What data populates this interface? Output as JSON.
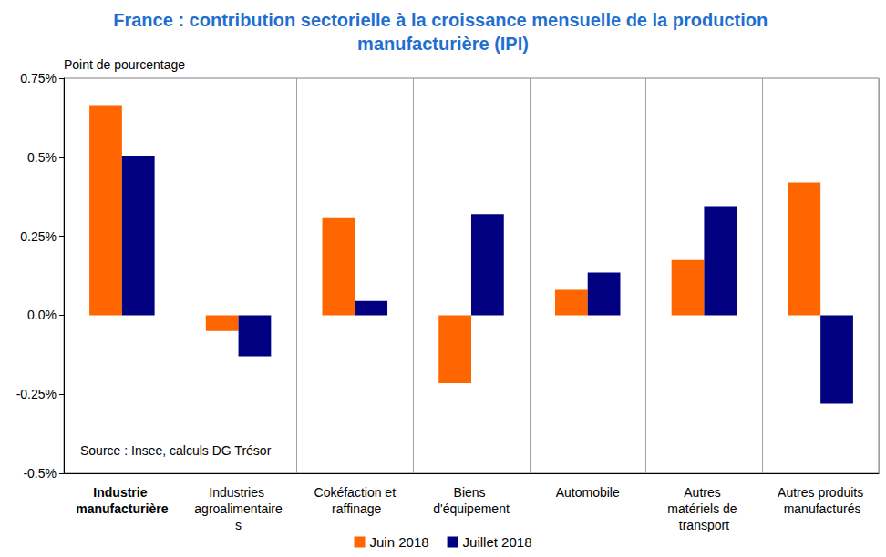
{
  "chart_data": {
    "type": "bar",
    "title": "France : contribution sectorielle à la croissance mensuelle de la production manufacturière (IPI)",
    "y_label": "Point de pourcentage",
    "source": "Source : Insee, calculs DG Trésor",
    "categories": [
      "Industrie manufacturière",
      "Industries agroalimentaires",
      "Cokéfaction et raffinage",
      "Biens d'équipement",
      "Automobile",
      "Autres matériels de transport",
      "Autres produits manufacturés"
    ],
    "series": [
      {
        "name": "Juin 2018",
        "color": "#ff6600",
        "values": [
          0.665,
          -0.05,
          0.31,
          -0.215,
          0.08,
          0.175,
          0.42
        ]
      },
      {
        "name": "Juillet 2018",
        "color": "#000080",
        "values": [
          0.505,
          -0.13,
          0.045,
          0.32,
          0.135,
          0.345,
          -0.28
        ]
      }
    ],
    "ylim": [
      -0.5,
      0.75
    ],
    "yticks": [
      {
        "value": -0.5,
        "label": "-0.5%"
      },
      {
        "value": -0.25,
        "label": "-0.25%"
      },
      {
        "value": 0,
        "label": "0.0%"
      },
      {
        "value": 0.25,
        "label": "0.25%"
      },
      {
        "value": 0.5,
        "label": "0.5%"
      },
      {
        "value": 0.75,
        "label": "0.75%"
      }
    ],
    "grid": true,
    "legend": "bottom"
  }
}
